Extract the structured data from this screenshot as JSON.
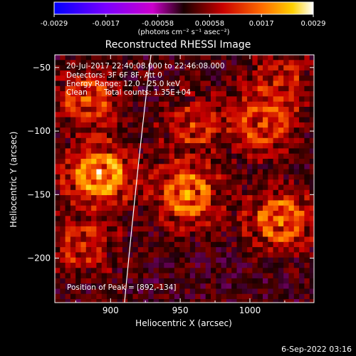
{
  "chart_data": {
    "type": "heatmap",
    "title": "Reconstructed RHESSI Image",
    "xlabel": "Heliocentric X (arcsec)",
    "ylabel": "Heliocentric Y (arcsec)",
    "xlim": [
      860,
      1046
    ],
    "ylim": [
      -235,
      -40
    ],
    "x_ticks": [
      900,
      950,
      1000
    ],
    "y_ticks": [
      -50,
      -100,
      -150,
      -200
    ],
    "colorbar": {
      "range": [
        -0.0029,
        0.0029
      ],
      "ticks": [
        "-0.0029",
        "-0.0017",
        "-0.00058",
        "0.00058",
        "0.0017",
        "0.0029"
      ],
      "units": "(photons cm⁻² s⁻¹ asec⁻²)",
      "colormap": [
        "#0000ff",
        "#7a00ff",
        "#cc00cc",
        "#1a0000",
        "#c80000",
        "#ff6a00",
        "#ffd000",
        "#ffffff"
      ]
    },
    "annotations": {
      "time_range": "20-Jul-2017 22:40:08.000 to 22:46:08.000",
      "detectors": "Detectors: 3F 6F 8F, Att 0",
      "energy_range": "Energy Range: 12.0 - 25.0 keV",
      "clean_label": "Clean",
      "total_counts": "Total counts: 1.35E+04",
      "peak_position": "Position of Peak = [892,-134]"
    },
    "sources": [
      {
        "x": 892,
        "y": -134,
        "peak": 1.0
      },
      {
        "x": 883,
        "y": -75,
        "peak": 0.55
      },
      {
        "x": 955,
        "y": -150,
        "peak": 0.8
      },
      {
        "x": 1022,
        "y": -170,
        "peak": 0.75
      },
      {
        "x": 1010,
        "y": -95,
        "peak": 0.55
      },
      {
        "x": 960,
        "y": -95,
        "peak": 0.45
      },
      {
        "x": 880,
        "y": -190,
        "peak": 0.45
      },
      {
        "x": 1020,
        "y": -60,
        "peak": 0.4
      }
    ],
    "limb_arc": [
      [
        929,
        -40
      ],
      [
        920,
        -120
      ],
      [
        910,
        -235
      ]
    ]
  },
  "footer": {
    "date": "6-Sep-2022 03:16"
  }
}
